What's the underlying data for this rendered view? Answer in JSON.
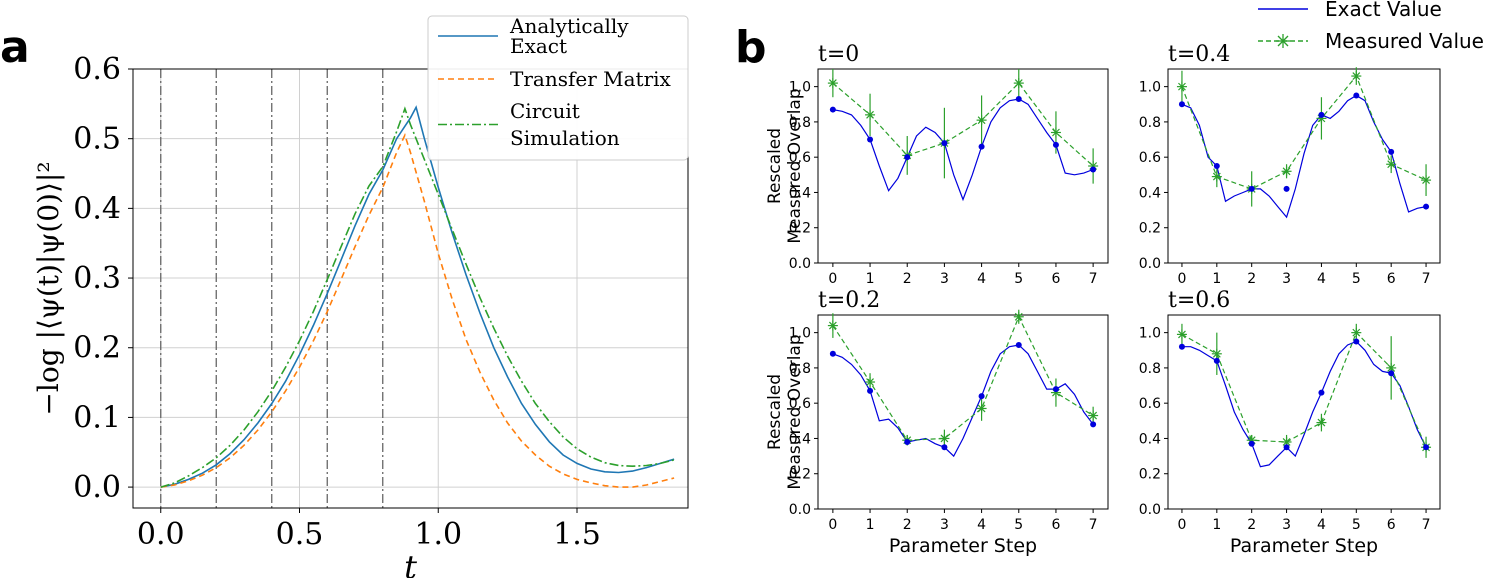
{
  "figure": {
    "panel_a_letter": "a",
    "panel_b_letter": "b"
  },
  "chart_data": [
    {
      "type": "line",
      "panel": "a",
      "xlabel": "t",
      "ylabel": "−log |⟨ψ(t)|ψ(0)⟩|²",
      "xlim": [
        -0.1,
        1.9
      ],
      "ylim": [
        -0.03,
        0.6
      ],
      "xticks": [
        "0.0",
        "0.5",
        "1.0",
        "1.5"
      ],
      "yticks": [
        "0.0",
        "0.1",
        "0.2",
        "0.3",
        "0.4",
        "0.5",
        "0.6"
      ],
      "grid": true,
      "legend_position": "top-right",
      "vertical_dashdot_lines_at": [
        0.0,
        0.2,
        0.4,
        0.6,
        0.8
      ],
      "series": [
        {
          "name": "Analytically Exact",
          "color": "#1f77b4",
          "style": "solid",
          "x": [
            0.0,
            0.05,
            0.1,
            0.15,
            0.2,
            0.25,
            0.3,
            0.35,
            0.4,
            0.45,
            0.5,
            0.55,
            0.6,
            0.65,
            0.7,
            0.75,
            0.8,
            0.85,
            0.9,
            0.92,
            0.95,
            1.0,
            1.05,
            1.1,
            1.15,
            1.2,
            1.25,
            1.3,
            1.35,
            1.4,
            1.45,
            1.5,
            1.55,
            1.6,
            1.65,
            1.7,
            1.75,
            1.8,
            1.85
          ],
          "y": [
            0.0,
            0.004,
            0.011,
            0.02,
            0.032,
            0.048,
            0.068,
            0.092,
            0.12,
            0.152,
            0.19,
            0.232,
            0.278,
            0.326,
            0.375,
            0.42,
            0.455,
            0.5,
            0.53,
            0.545,
            0.5,
            0.43,
            0.365,
            0.305,
            0.25,
            0.2,
            0.158,
            0.12,
            0.09,
            0.065,
            0.046,
            0.034,
            0.026,
            0.022,
            0.021,
            0.023,
            0.028,
            0.034,
            0.04
          ]
        },
        {
          "name": "Transfer Matrix",
          "color": "#ff7f0e",
          "style": "dashed",
          "x": [
            0.0,
            0.05,
            0.1,
            0.15,
            0.2,
            0.25,
            0.3,
            0.35,
            0.4,
            0.45,
            0.5,
            0.55,
            0.6,
            0.65,
            0.7,
            0.75,
            0.8,
            0.85,
            0.88,
            0.9,
            0.95,
            1.0,
            1.05,
            1.1,
            1.15,
            1.2,
            1.25,
            1.3,
            1.35,
            1.4,
            1.45,
            1.5,
            1.55,
            1.6,
            1.65,
            1.7,
            1.75,
            1.8,
            1.85
          ],
          "y": [
            0.0,
            0.003,
            0.009,
            0.017,
            0.028,
            0.042,
            0.06,
            0.082,
            0.108,
            0.138,
            0.172,
            0.21,
            0.252,
            0.298,
            0.345,
            0.39,
            0.43,
            0.48,
            0.505,
            0.48,
            0.41,
            0.335,
            0.27,
            0.212,
            0.165,
            0.125,
            0.092,
            0.066,
            0.046,
            0.03,
            0.019,
            0.011,
            0.006,
            0.002,
            0.0,
            0.0,
            0.003,
            0.008,
            0.013
          ]
        },
        {
          "name": "Circuit Simulation",
          "color": "#2ca02c",
          "style": "dashdot",
          "x": [
            0.0,
            0.05,
            0.1,
            0.15,
            0.2,
            0.25,
            0.3,
            0.35,
            0.4,
            0.45,
            0.5,
            0.55,
            0.6,
            0.65,
            0.7,
            0.75,
            0.8,
            0.85,
            0.88,
            0.9,
            0.95,
            1.0,
            1.05,
            1.1,
            1.15,
            1.2,
            1.25,
            1.3,
            1.35,
            1.4,
            1.45,
            1.5,
            1.55,
            1.6,
            1.65,
            1.7,
            1.75,
            1.8,
            1.85
          ],
          "y": [
            0.0,
            0.006,
            0.016,
            0.028,
            0.042,
            0.06,
            0.082,
            0.108,
            0.138,
            0.172,
            0.21,
            0.252,
            0.298,
            0.345,
            0.392,
            0.432,
            0.46,
            0.51,
            0.543,
            0.52,
            0.47,
            0.42,
            0.37,
            0.32,
            0.272,
            0.228,
            0.188,
            0.152,
            0.12,
            0.094,
            0.072,
            0.055,
            0.043,
            0.035,
            0.031,
            0.03,
            0.031,
            0.034,
            0.039
          ]
        }
      ]
    },
    {
      "type": "line",
      "panel": "b",
      "ylabel": "Rescaled Measured Overlap",
      "xlabel": "Parameter Step",
      "legend_position": "top-right",
      "legend": [
        "Exact Value",
        "Measured Value"
      ],
      "series_colors": {
        "exact": "#0000dd",
        "measured": "#2ca02c"
      },
      "xticks": [
        "0",
        "1",
        "2",
        "3",
        "4",
        "5",
        "6",
        "7"
      ],
      "yticks": [
        "0.0",
        "0.2",
        "0.4",
        "0.6",
        "0.8",
        "1.0"
      ],
      "ylim": [
        0.0,
        1.1
      ],
      "subplots": [
        {
          "title": "t=0",
          "exact_curve_x": [
            0,
            0.25,
            0.5,
            0.75,
            1,
            1.25,
            1.5,
            1.75,
            2,
            2.25,
            2.5,
            2.75,
            3,
            3.25,
            3.5,
            3.75,
            4,
            4.25,
            4.5,
            4.75,
            5,
            5.25,
            5.5,
            5.75,
            6,
            6.25,
            6.5,
            6.75,
            7
          ],
          "exact_curve_y": [
            0.87,
            0.86,
            0.84,
            0.78,
            0.7,
            0.55,
            0.41,
            0.48,
            0.6,
            0.72,
            0.77,
            0.74,
            0.68,
            0.5,
            0.36,
            0.5,
            0.66,
            0.8,
            0.88,
            0.92,
            0.93,
            0.9,
            0.82,
            0.74,
            0.67,
            0.51,
            0.5,
            0.51,
            0.53
          ],
          "exact_points": [
            0.87,
            0.7,
            0.6,
            0.68,
            0.66,
            0.93,
            0.67,
            0.53
          ],
          "measured": [
            1.02,
            0.84,
            0.61,
            0.68,
            0.81,
            1.02,
            0.74,
            0.55
          ],
          "errors": [
            0.08,
            0.12,
            0.11,
            0.2,
            0.14,
            0.08,
            0.12,
            0.1
          ]
        },
        {
          "title": "t=0.4",
          "exact_curve_x": [
            0,
            0.25,
            0.5,
            0.75,
            1,
            1.25,
            1.5,
            1.75,
            2,
            2.25,
            2.5,
            2.75,
            3,
            3.25,
            3.5,
            3.75,
            4,
            4.25,
            4.5,
            4.75,
            5,
            5.25,
            5.5,
            5.75,
            6,
            6.25,
            6.5,
            6.75,
            7
          ],
          "exact_curve_y": [
            0.9,
            0.88,
            0.78,
            0.6,
            0.55,
            0.35,
            0.38,
            0.4,
            0.42,
            0.42,
            0.38,
            0.32,
            0.26,
            0.42,
            0.62,
            0.78,
            0.84,
            0.82,
            0.86,
            0.92,
            0.95,
            0.92,
            0.8,
            0.7,
            0.63,
            0.45,
            0.29,
            0.31,
            0.32
          ],
          "exact_points": [
            0.9,
            0.55,
            0.42,
            0.42,
            0.84,
            0.95,
            0.63,
            0.32
          ],
          "measured": [
            1.0,
            0.49,
            0.42,
            0.52,
            0.82,
            1.06,
            0.56,
            0.47
          ],
          "errors": [
            0.09,
            0.06,
            0.1,
            0.04,
            0.12,
            0.05,
            0.05,
            0.09
          ]
        },
        {
          "title": "t=0.2",
          "exact_curve_x": [
            0,
            0.25,
            0.5,
            0.75,
            1,
            1.25,
            1.5,
            1.75,
            2,
            2.25,
            2.5,
            2.75,
            3,
            3.25,
            3.5,
            3.75,
            4,
            4.25,
            4.5,
            4.75,
            5,
            5.25,
            5.5,
            5.75,
            6,
            6.25,
            6.5,
            6.75,
            7
          ],
          "exact_curve_y": [
            0.88,
            0.86,
            0.82,
            0.76,
            0.67,
            0.5,
            0.51,
            0.46,
            0.38,
            0.39,
            0.4,
            0.37,
            0.35,
            0.3,
            0.4,
            0.52,
            0.64,
            0.78,
            0.88,
            0.92,
            0.93,
            0.88,
            0.78,
            0.68,
            0.68,
            0.71,
            0.65,
            0.55,
            0.48
          ],
          "exact_points": [
            0.88,
            0.67,
            0.38,
            0.35,
            0.64,
            0.93,
            0.68,
            0.48
          ],
          "measured": [
            1.04,
            0.72,
            0.39,
            0.4,
            0.57,
            1.09,
            0.66,
            0.53
          ],
          "errors": [
            0.07,
            0.05,
            0.03,
            0.05,
            0.07,
            0.04,
            0.08,
            0.05
          ]
        },
        {
          "title": "t=0.6",
          "exact_curve_x": [
            0,
            0.25,
            0.5,
            0.75,
            1,
            1.25,
            1.5,
            1.75,
            2,
            2.25,
            2.5,
            2.75,
            3,
            3.25,
            3.5,
            3.75,
            4,
            4.25,
            4.5,
            4.75,
            5,
            5.25,
            5.5,
            5.75,
            6,
            6.25,
            6.5,
            6.75,
            7
          ],
          "exact_curve_y": [
            0.92,
            0.92,
            0.9,
            0.87,
            0.84,
            0.7,
            0.55,
            0.45,
            0.37,
            0.24,
            0.25,
            0.3,
            0.35,
            0.3,
            0.42,
            0.55,
            0.66,
            0.78,
            0.88,
            0.93,
            0.95,
            0.9,
            0.82,
            0.78,
            0.77,
            0.7,
            0.58,
            0.45,
            0.35
          ],
          "exact_points": [
            0.92,
            0.84,
            0.37,
            0.35,
            0.66,
            0.95,
            0.77,
            0.35
          ],
          "measured": [
            0.99,
            0.88,
            0.39,
            0.38,
            0.49,
            1.0,
            0.8,
            0.35
          ],
          "errors": [
            0.06,
            0.12,
            0.03,
            0.04,
            0.05,
            0.05,
            0.18,
            0.06
          ]
        }
      ]
    }
  ]
}
